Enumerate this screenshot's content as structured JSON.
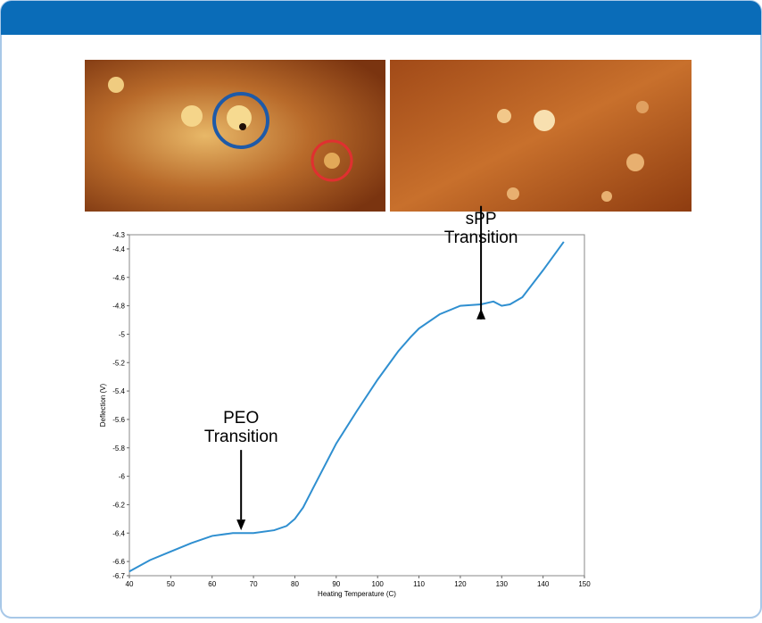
{
  "chart_data": {
    "type": "line",
    "xlabel": "Heating Temperature (C)",
    "ylabel": "Deflection (V)",
    "x": [
      40,
      45,
      50,
      55,
      60,
      65,
      70,
      75,
      78,
      80,
      82,
      85,
      90,
      95,
      100,
      105,
      108,
      110,
      115,
      120,
      125,
      128,
      130,
      132,
      135,
      140,
      145
    ],
    "series": [
      {
        "color": "#2f8fd0",
        "values": [
          -6.67,
          -6.59,
          -6.53,
          -6.47,
          -6.42,
          -6.4,
          -6.4,
          -6.38,
          -6.35,
          -6.3,
          -6.22,
          -6.05,
          -5.77,
          -5.54,
          -5.32,
          -5.12,
          -5.02,
          -4.96,
          -4.86,
          -4.8,
          -4.79,
          -4.77,
          -4.8,
          -4.79,
          -4.74,
          -4.55,
          -4.35
        ]
      }
    ],
    "xlim": [
      40,
      150
    ],
    "xticks": [
      40,
      50,
      60,
      70,
      80,
      90,
      100,
      110,
      120,
      130,
      140,
      150
    ],
    "ylim": [
      -6.7,
      -4.3
    ],
    "yticks": [
      -6.7,
      -6.6,
      -6.4,
      -6.2,
      -6,
      -5.8,
      -5.6,
      -5.4,
      -5.2,
      -5,
      -4.8,
      -4.6,
      -4.4,
      -4.3
    ],
    "annotations": [
      {
        "text": [
          "PEO",
          "Transition"
        ],
        "x": 67,
        "y": -6.38
      },
      {
        "text": [
          "sPP",
          "Transition"
        ],
        "x": 125,
        "y": -4.82
      }
    ]
  }
}
